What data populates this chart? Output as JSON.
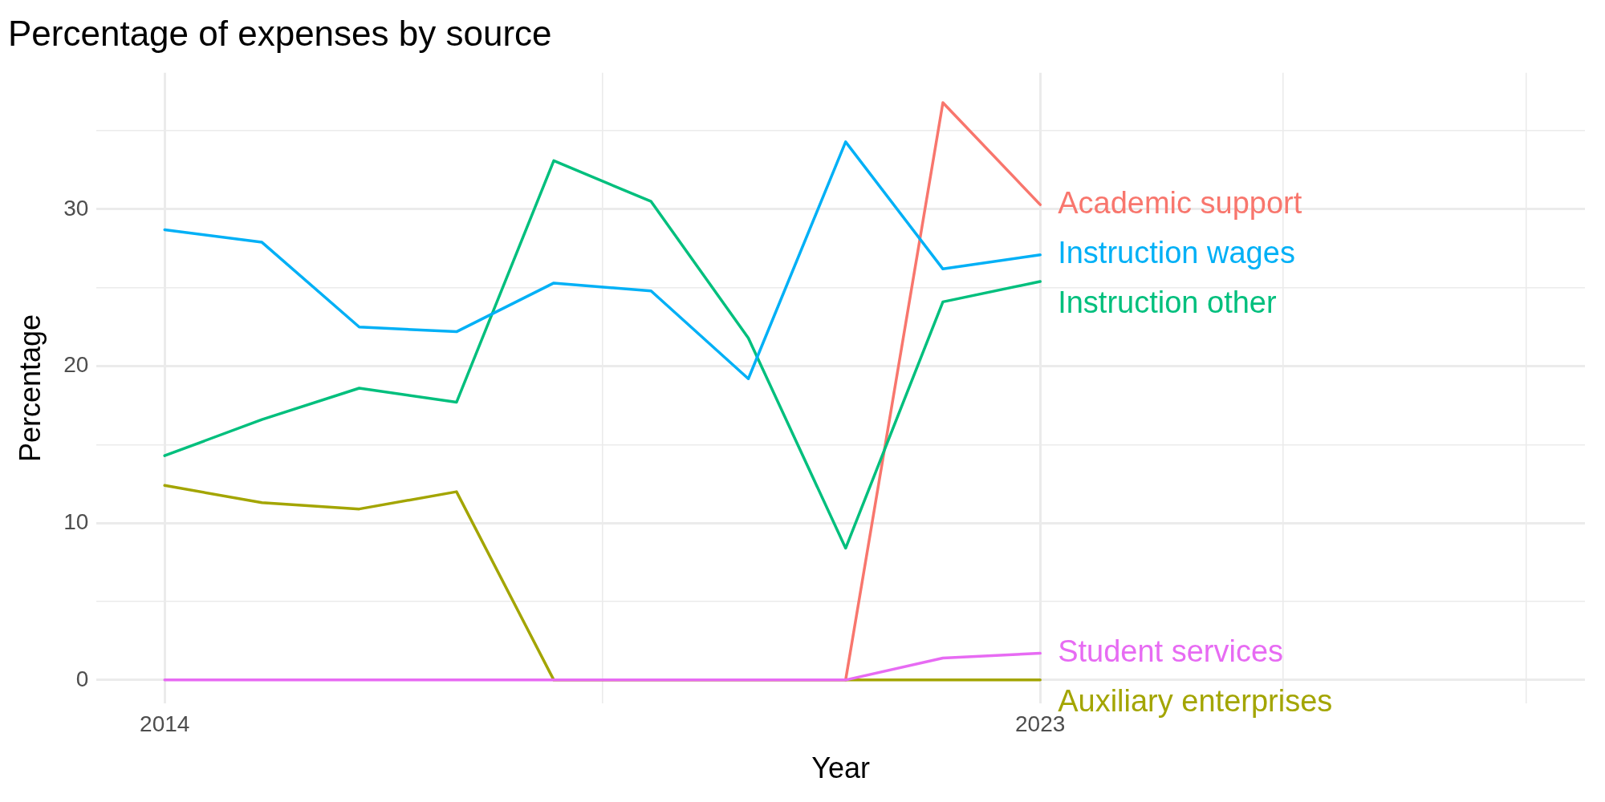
{
  "chart_data": {
    "type": "line",
    "title": "Percentage of expenses by source",
    "xlabel": "Year",
    "ylabel": "Percentage",
    "x": [
      2014,
      2015,
      2016,
      2017,
      2018,
      2019,
      2020,
      2021,
      2022,
      2023
    ],
    "series": [
      {
        "name": "Academic support",
        "color": "#f8766d",
        "values": [
          null,
          null,
          null,
          null,
          null,
          null,
          null,
          0,
          36.8,
          30.3
        ]
      },
      {
        "name": "Auxiliary enterprises",
        "color": "#a3a500",
        "values": [
          12.4,
          11.3,
          10.9,
          12.0,
          0,
          0,
          0,
          0,
          0,
          0
        ]
      },
      {
        "name": "Instruction other",
        "color": "#00bf7d",
        "values": [
          14.3,
          16.6,
          18.6,
          17.7,
          33.1,
          30.5,
          21.8,
          8.4,
          24.1,
          25.4
        ]
      },
      {
        "name": "Instruction wages",
        "color": "#00b0f6",
        "values": [
          28.7,
          27.9,
          22.5,
          22.2,
          25.3,
          24.8,
          19.2,
          34.3,
          26.2,
          27.1
        ]
      },
      {
        "name": "Student services",
        "color": "#e76bf3",
        "values": [
          0,
          0,
          0,
          0,
          0,
          0,
          0,
          0,
          1.4,
          1.7
        ]
      }
    ],
    "xlim": [
      2013.3,
      2028.6
    ],
    "xticks": [
      2014,
      {
        "value": 2018.5,
        "label": null
      },
      2023,
      {
        "value": 2025.5,
        "label": null
      },
      {
        "value": 2028,
        "label": null
      }
    ],
    "ylim": [
      -1.5,
      38.7
    ],
    "yticks": [
      0,
      {
        "value": 5,
        "label": null
      },
      10,
      {
        "value": 15,
        "label": null
      },
      20,
      {
        "value": 25,
        "label": null
      },
      30,
      {
        "value": 35,
        "label": null
      }
    ],
    "grid": true,
    "legend": false,
    "marker": "none",
    "line_style": "solid"
  }
}
